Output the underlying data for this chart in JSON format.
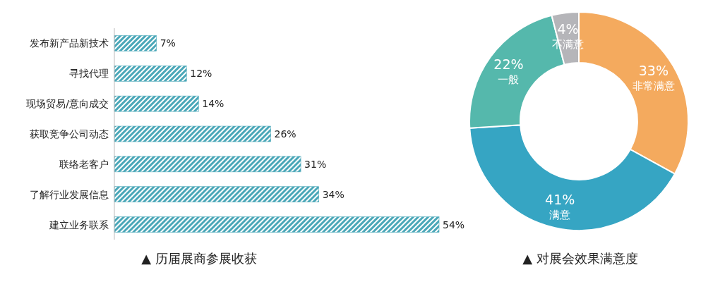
{
  "chart_data": [
    {
      "type": "bar",
      "orientation": "horizontal",
      "title": "▲ 历届展商参展收获",
      "categories": [
        "发布新产品新技术",
        "寻找代理",
        "现场贸易/意向成交",
        "获取竞争公司动态",
        "联络老客户",
        "了解行业发展信息",
        "建立业务联系"
      ],
      "values": [
        7,
        12,
        14,
        26,
        31,
        34,
        54
      ],
      "color": "#4aa7b8",
      "value_labels": [
        "7%",
        "12%",
        "14%",
        "26%",
        "31%",
        "34%",
        "54%"
      ],
      "xlim": [
        0,
        54
      ]
    },
    {
      "type": "donut",
      "title": "▲ 对展会效果满意度",
      "categories": [
        "非常满意",
        "满意",
        "一般",
        "不满意"
      ],
      "values": [
        33,
        41,
        22,
        4
      ],
      "colors": [
        "#f4aa5e",
        "#36a5c3",
        "#55b8ac",
        "#b5b5b9"
      ],
      "value_labels": [
        "33%",
        "41%",
        "22%",
        "4%"
      ]
    }
  ]
}
